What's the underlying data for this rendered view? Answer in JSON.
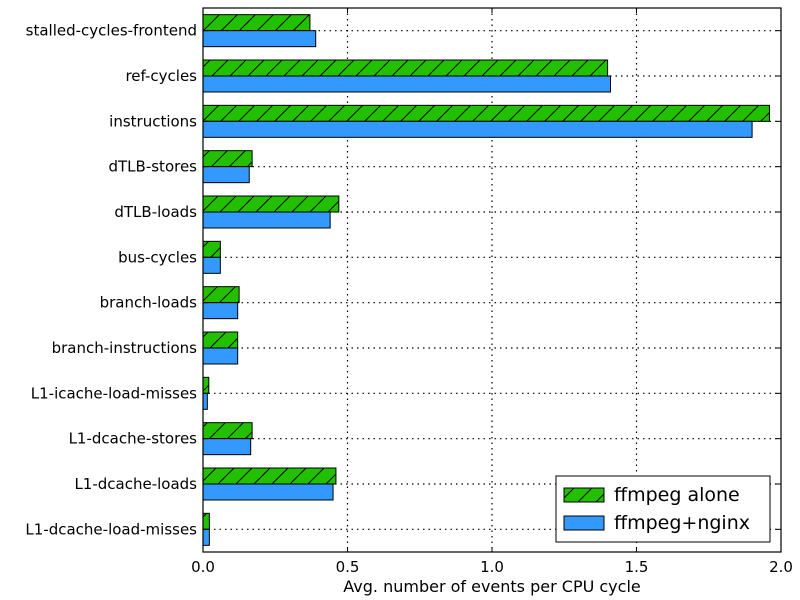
{
  "chart_data": {
    "type": "bar",
    "orientation": "horizontal",
    "categories": [
      "stalled-cycles-frontend",
      "ref-cycles",
      "instructions",
      "dTLB-stores",
      "dTLB-loads",
      "bus-cycles",
      "branch-loads",
      "branch-instructions",
      "L1-icache-load-misses",
      "L1-dcache-stores",
      "L1-dcache-loads",
      "L1-dcache-load-misses"
    ],
    "series": [
      {
        "name": "ffmpeg alone",
        "color": "#22c000",
        "hatch": "diagonal",
        "values": [
          0.37,
          1.4,
          1.96,
          0.17,
          0.47,
          0.06,
          0.125,
          0.12,
          0.02,
          0.17,
          0.46,
          0.022
        ]
      },
      {
        "name": "ffmpeg+nginx",
        "color": "#3399ff",
        "hatch": "none",
        "values": [
          0.39,
          1.41,
          1.9,
          0.16,
          0.44,
          0.06,
          0.12,
          0.12,
          0.015,
          0.165,
          0.45,
          0.022
        ]
      }
    ],
    "title": "",
    "xlabel": "Avg. number of events per CPU cycle",
    "ylabel": "",
    "xlim": [
      0.0,
      2.0
    ],
    "xticks": [
      "0.0",
      "0.5",
      "1.0",
      "1.5",
      "2.0"
    ],
    "grid": true,
    "legend_position": "lower-right"
  }
}
